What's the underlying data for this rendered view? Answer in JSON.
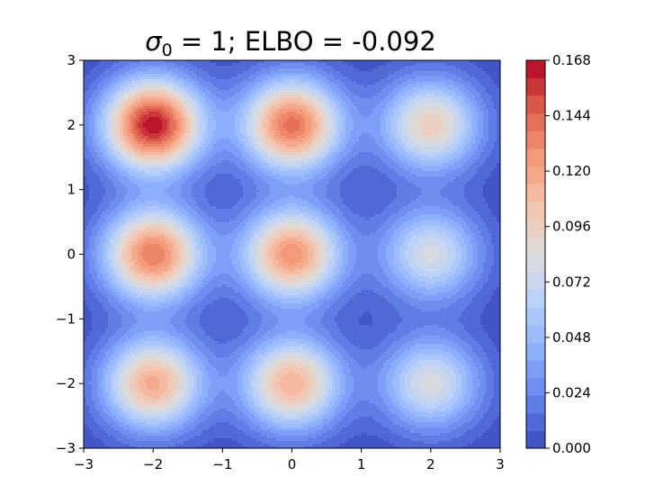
{
  "chart_data": {
    "type": "contour",
    "title": {
      "sigma_symbol": "σ",
      "sigma_subscript": "0",
      "rest": " = 1; ELBO = -0.092"
    },
    "xlabel": "",
    "ylabel": "",
    "xlim": [
      -3,
      3
    ],
    "ylim": [
      -3,
      3
    ],
    "x_ticks": [
      -3,
      -2,
      -1,
      0,
      1,
      2,
      3
    ],
    "y_ticks": [
      -3,
      -2,
      -1,
      0,
      1,
      2,
      3
    ],
    "x_tick_labels": [
      "−3",
      "−2",
      "−1",
      "0",
      "1",
      "2",
      "3"
    ],
    "y_tick_labels": [
      "−3",
      "−2",
      "−1",
      "0",
      "1",
      "2",
      "3"
    ],
    "grid": false,
    "colormap": "coolwarm",
    "colorbar": {
      "min": 0.0,
      "max": 0.168,
      "levels": 22,
      "ticks": [
        0.0,
        0.024,
        0.048,
        0.072,
        0.096,
        0.12,
        0.144,
        0.168
      ],
      "tick_labels": [
        "0.000",
        "0.024",
        "0.048",
        "0.072",
        "0.096",
        "0.120",
        "0.144",
        "0.168"
      ]
    },
    "components": [
      {
        "x": -2,
        "y": 2,
        "peak": 0.166
      },
      {
        "x": 0,
        "y": 2,
        "peak": 0.141
      },
      {
        "x": 2,
        "y": 2,
        "peak": 0.097
      },
      {
        "x": -2,
        "y": 0,
        "peak": 0.137
      },
      {
        "x": 0,
        "y": 0,
        "peak": 0.128
      },
      {
        "x": 2,
        "y": 0,
        "peak": 0.079
      },
      {
        "x": -2,
        "y": -2,
        "peak": 0.117
      },
      {
        "x": 0,
        "y": -2,
        "peak": 0.114
      },
      {
        "x": 2,
        "y": -2,
        "peak": 0.081
      }
    ],
    "component_std": 0.5,
    "colors": {
      "low": "#3b4cc0",
      "high": "#b40426",
      "frame": "#000000"
    }
  }
}
